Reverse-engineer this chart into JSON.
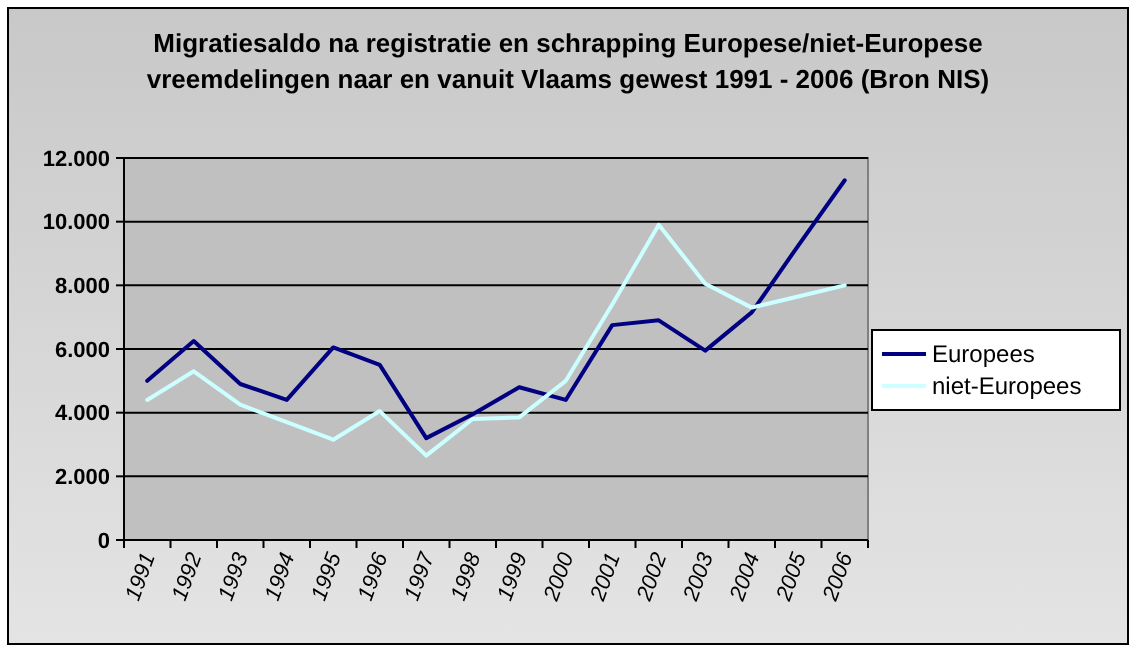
{
  "chart_data": {
    "type": "line",
    "title": "Migratiesaldo na registratie en schrapping Europese/niet-Europese vreemdelingen naar en vanuit Vlaams gewest  1991 - 2006 (Bron NIS)",
    "categories": [
      "1991",
      "1992",
      "1993",
      "1994",
      "1995",
      "1996",
      "1997",
      "1998",
      "1999",
      "2000",
      "2001",
      "2002",
      "2003",
      "2004",
      "2005",
      "2006"
    ],
    "series": [
      {
        "name": "Europees",
        "color": "#000080",
        "values": [
          5000,
          6250,
          4900,
          4400,
          6050,
          5500,
          3200,
          3950,
          4800,
          4400,
          6750,
          6900,
          5950,
          7150,
          9250,
          11300
        ]
      },
      {
        "name": "niet-Europees",
        "color": "#ccffff",
        "values": [
          4400,
          5300,
          4250,
          3700,
          3150,
          4050,
          2650,
          3800,
          3850,
          5000,
          7400,
          9900,
          8050,
          7300,
          7650,
          8000
        ]
      }
    ],
    "ylim": [
      0,
      12000
    ],
    "yticks": [
      {
        "value": 0,
        "label": "0"
      },
      {
        "value": 2000,
        "label": "2.000"
      },
      {
        "value": 4000,
        "label": "4.000"
      },
      {
        "value": 6000,
        "label": "6.000"
      },
      {
        "value": 8000,
        "label": "8.000"
      },
      {
        "value": 10000,
        "label": "10.000"
      },
      {
        "value": 12000,
        "label": "12.000"
      }
    ],
    "grid": "y",
    "legend": "right",
    "marker": "none",
    "line_style": "solid"
  }
}
